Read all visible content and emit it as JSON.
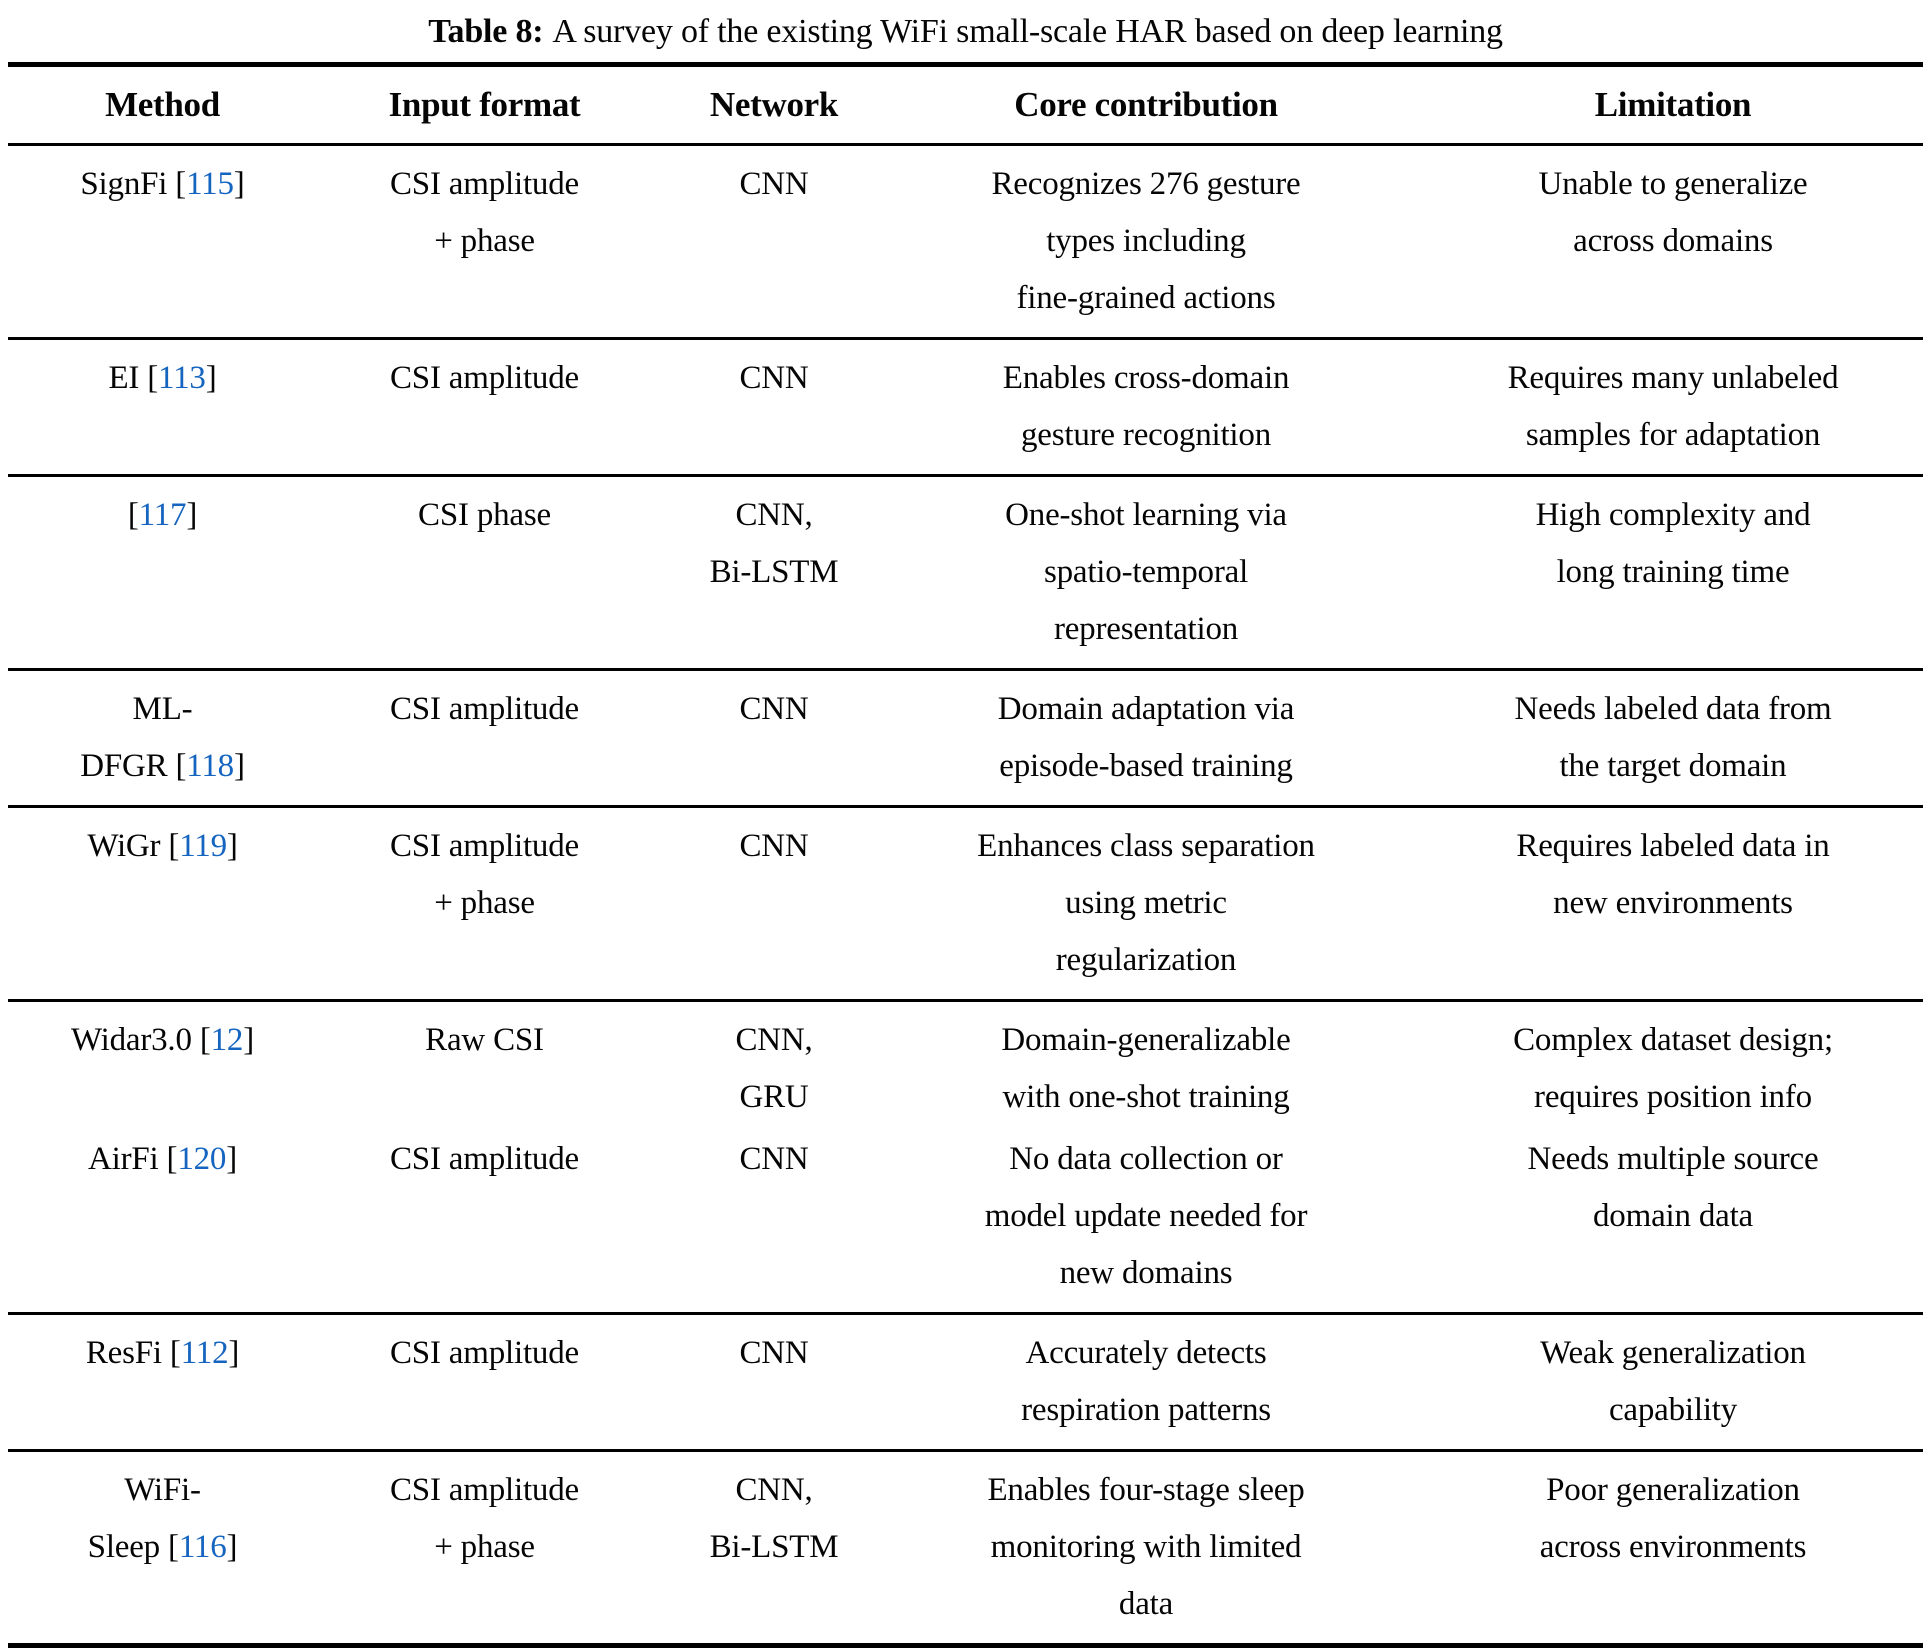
{
  "caption": {
    "label": "Table 8:",
    "text": "A survey of the existing WiFi small-scale HAR based on deep learning"
  },
  "colors": {
    "citation_link": "#1565c0",
    "text": "#050505",
    "rule": "#000000",
    "background": "#ffffff"
  },
  "columns": [
    "Method",
    "Input format",
    "Network",
    "Core contribution",
    "Limitation"
  ],
  "blocks": [
    {
      "rows": [
        {
          "method": [
            {
              "text": "SignFi",
              "cite": "115"
            }
          ],
          "input": [
            "CSI amplitude",
            "+ phase"
          ],
          "network": [
            "CNN"
          ],
          "contribution": [
            "Recognizes 276 gesture",
            "types including",
            "fine-grained actions"
          ],
          "limitation": [
            "Unable to generalize",
            "across domains"
          ]
        }
      ]
    },
    {
      "rows": [
        {
          "method": [
            {
              "text": "EI",
              "cite": "113"
            }
          ],
          "input": [
            "CSI amplitude"
          ],
          "network": [
            "CNN"
          ],
          "contribution": [
            "Enables cross-domain",
            "gesture recognition"
          ],
          "limitation": [
            "Requires many unlabeled",
            "samples for adaptation"
          ]
        }
      ]
    },
    {
      "rows": [
        {
          "method": [
            {
              "text": "",
              "cite": "117"
            }
          ],
          "input": [
            "CSI phase"
          ],
          "network": [
            "CNN,",
            "Bi-LSTM"
          ],
          "contribution": [
            "One-shot learning via",
            "spatio-temporal",
            "representation"
          ],
          "limitation": [
            "High complexity and",
            "long training time"
          ]
        }
      ]
    },
    {
      "rows": [
        {
          "method": [
            {
              "text": "ML-"
            },
            {
              "text": "DFGR",
              "cite": "118"
            }
          ],
          "input": [
            "CSI amplitude"
          ],
          "network": [
            "CNN"
          ],
          "contribution": [
            "Domain adaptation via",
            "episode-based training"
          ],
          "limitation": [
            "Needs labeled data from",
            "the target domain"
          ]
        }
      ]
    },
    {
      "rows": [
        {
          "method": [
            {
              "text": "WiGr",
              "cite": "119"
            }
          ],
          "input": [
            "CSI amplitude",
            "+ phase"
          ],
          "network": [
            "CNN"
          ],
          "contribution": [
            "Enhances class separation",
            "using metric",
            "regularization"
          ],
          "limitation": [
            "Requires labeled data in",
            "new environments"
          ]
        }
      ]
    },
    {
      "rows": [
        {
          "method": [
            {
              "text": "Widar3.0",
              "cite": "12"
            }
          ],
          "input": [
            "Raw CSI"
          ],
          "network": [
            "CNN,",
            "GRU"
          ],
          "contribution": [
            "Domain-generalizable",
            "with one-shot training"
          ],
          "limitation": [
            "Complex dataset design;",
            "requires position info"
          ]
        },
        {
          "method": [
            {
              "text": "AirFi",
              "cite": "120"
            }
          ],
          "input": [
            "CSI amplitude"
          ],
          "network": [
            "CNN"
          ],
          "contribution": [
            "No data collection or",
            "model update needed for",
            "new domains"
          ],
          "limitation": [
            "Needs multiple source",
            "domain data"
          ]
        }
      ]
    },
    {
      "rows": [
        {
          "method": [
            {
              "text": "ResFi",
              "cite": "112"
            }
          ],
          "input": [
            "CSI amplitude"
          ],
          "network": [
            "CNN"
          ],
          "contribution": [
            "Accurately detects",
            "respiration patterns"
          ],
          "limitation": [
            "Weak generalization",
            "capability"
          ]
        }
      ]
    },
    {
      "rows": [
        {
          "method": [
            {
              "text": "WiFi-"
            },
            {
              "text": "Sleep",
              "cite": "116"
            }
          ],
          "input": [
            "CSI amplitude",
            "+ phase"
          ],
          "network": [
            "CNN,",
            "Bi-LSTM"
          ],
          "contribution": [
            "Enables four-stage sleep",
            "monitoring with limited",
            "data"
          ],
          "limitation": [
            "Poor generalization",
            "across environments"
          ]
        }
      ]
    }
  ]
}
